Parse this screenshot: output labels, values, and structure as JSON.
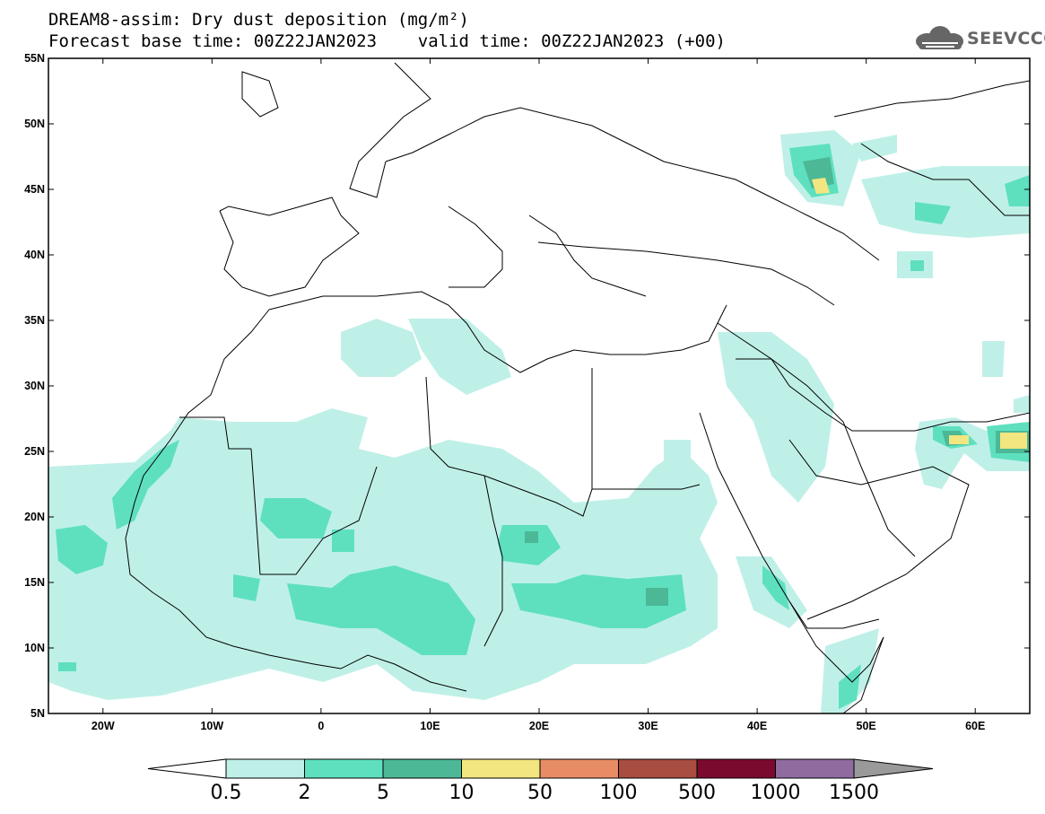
{
  "title": {
    "line1": "DREAM8-assim: Dry dust deposition (mg/m²)",
    "line2": "Forecast base time: 00Z22JAN2023    valid time: 00Z22JAN2023 (+00)"
  },
  "logo": {
    "text": "SEEVCCC",
    "icon": "cloud-icon"
  },
  "map": {
    "lat_range": [
      5,
      55
    ],
    "lon_range": [
      -25,
      65
    ],
    "lat_ticks": [
      "5N",
      "10N",
      "15N",
      "20N",
      "25N",
      "30N",
      "35N",
      "40N",
      "45N",
      "50N",
      "55N"
    ],
    "lon_ticks": [
      "20W",
      "10W",
      "0",
      "10E",
      "20E",
      "30E",
      "40E",
      "50E",
      "60E"
    ],
    "lat_values": [
      5,
      10,
      15,
      20,
      25,
      30,
      35,
      40,
      45,
      50,
      55
    ],
    "lon_values": [
      -20,
      -10,
      0,
      10,
      20,
      30,
      40,
      50,
      60
    ]
  },
  "colorbar": {
    "labels": [
      "0.5",
      "2",
      "5",
      "10",
      "50",
      "100",
      "500",
      "1000",
      "1500"
    ],
    "colors": [
      "#ffffff",
      "#bff0e8",
      "#5ee0bf",
      "#4db896",
      "#f2e680",
      "#e88c66",
      "#a84d40",
      "#7a0a2e",
      "#8f6ba0",
      "#9a9a9a"
    ]
  }
}
